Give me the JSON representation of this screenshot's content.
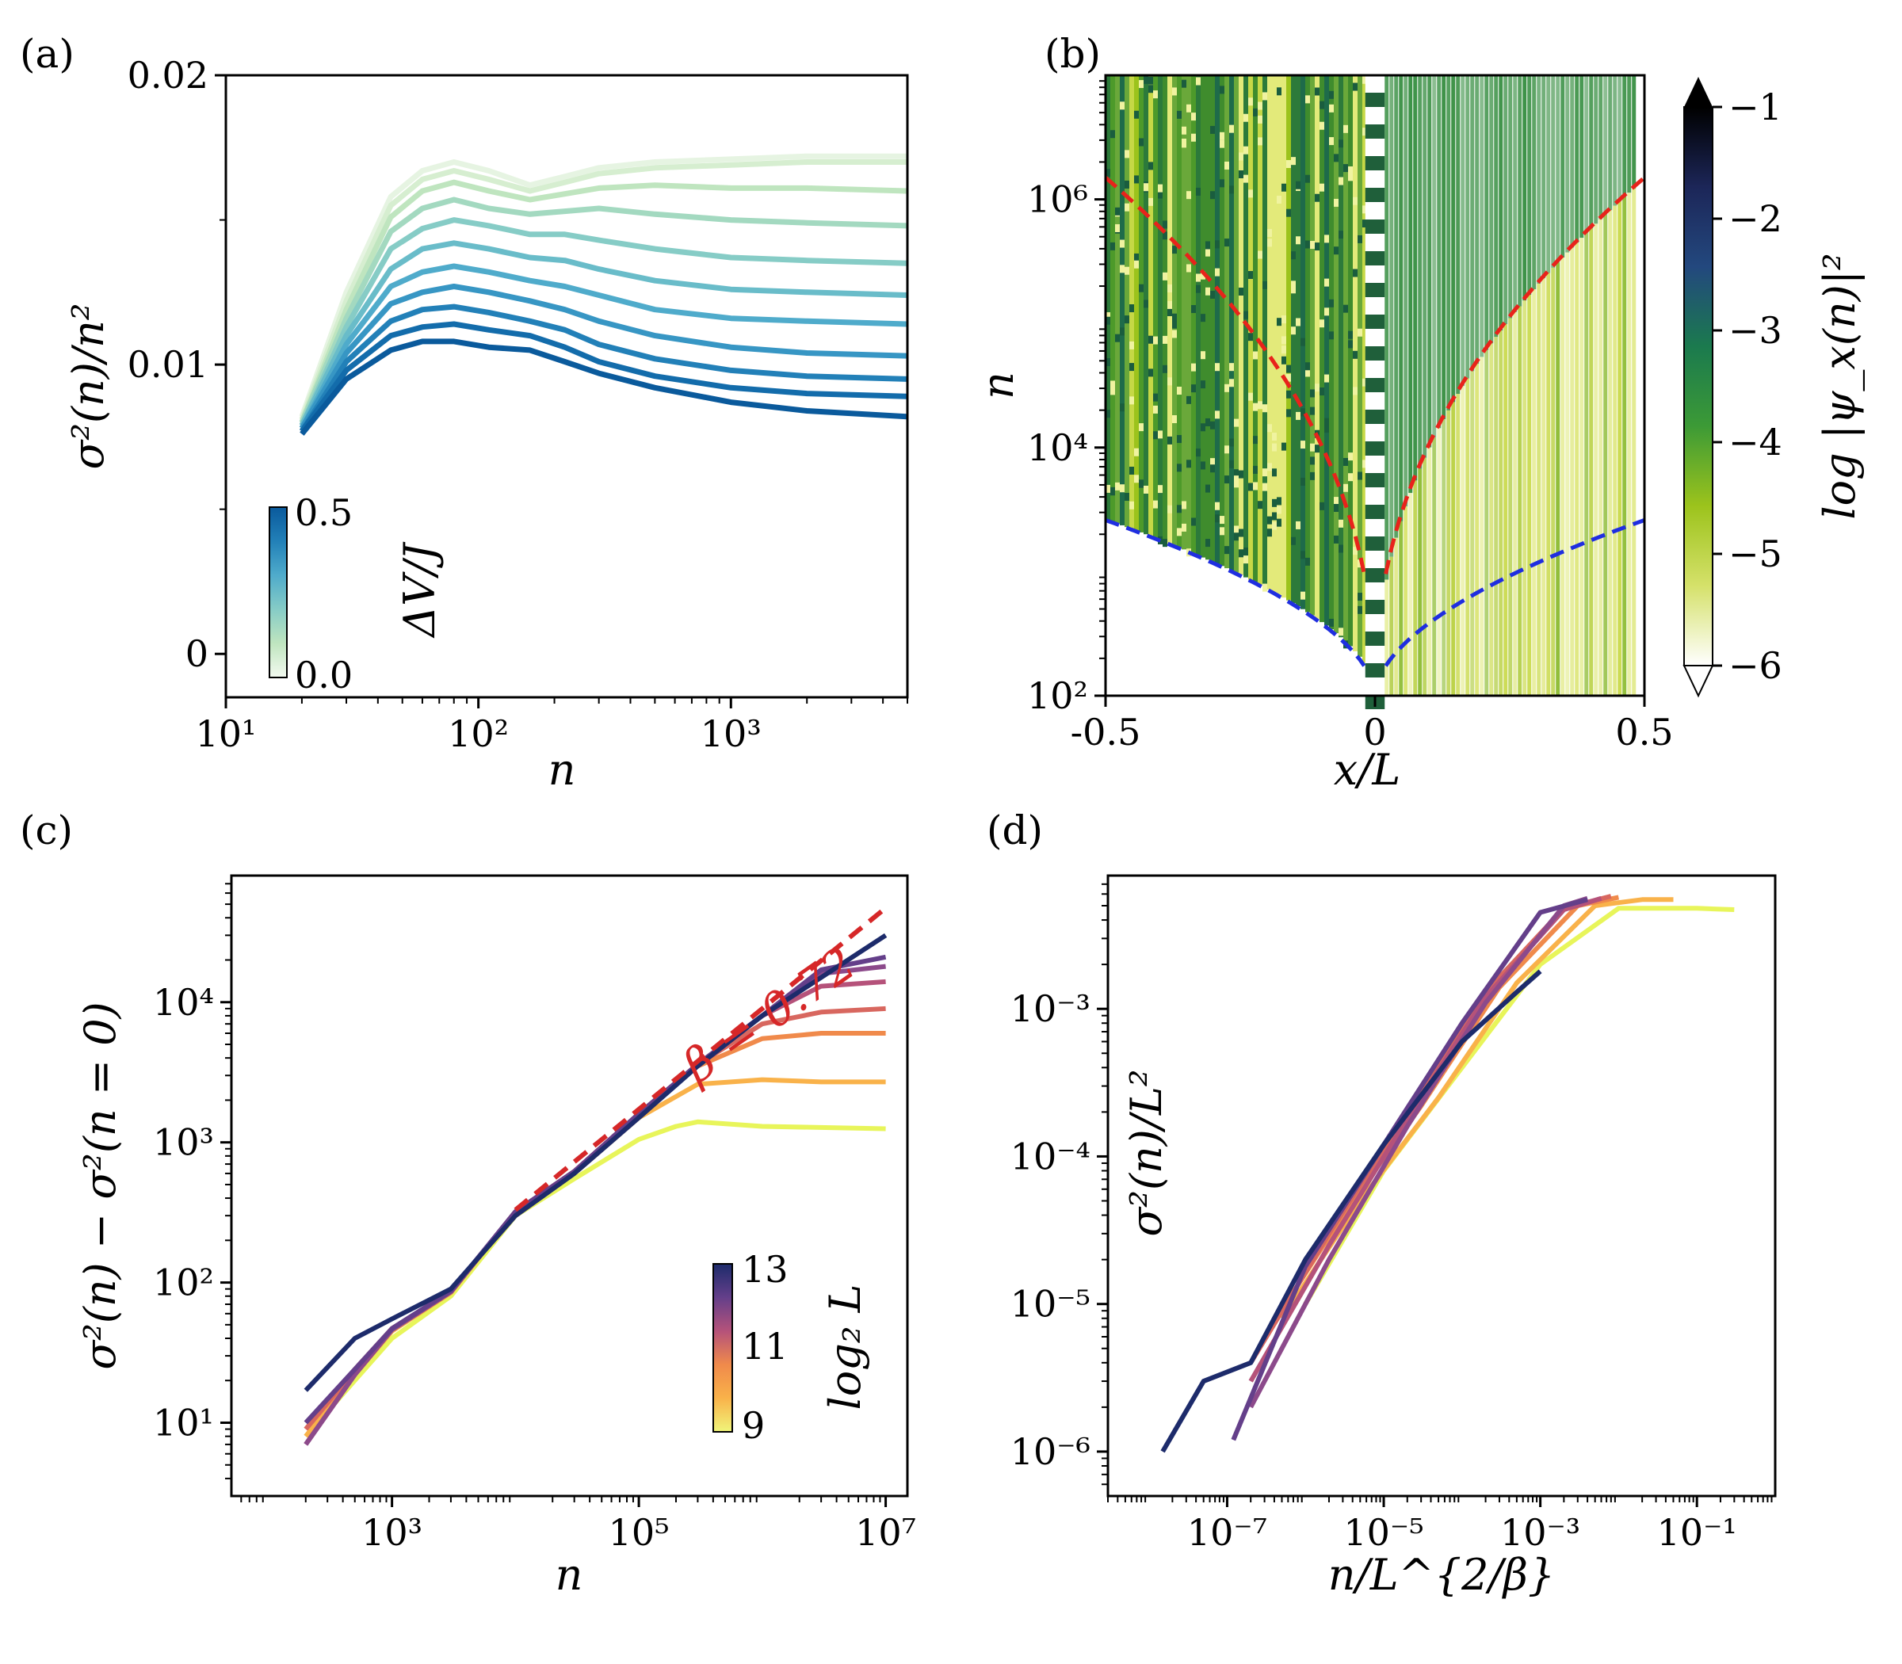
{
  "chart_data": [
    {
      "panel": "(a)",
      "type": "line",
      "xlabel": "n",
      "ylabel": "σ²(n)/n²",
      "xscale": "log",
      "xlim": [
        10,
        5000
      ],
      "ylim": [
        -0.0015,
        0.02
      ],
      "xticks": [
        "10¹",
        "10²",
        "10³"
      ],
      "yticks": [
        "0.02",
        "0.01",
        "0"
      ],
      "colorbar": {
        "label": "ΔV/J",
        "ticks": [
          "0.5",
          "0.0"
        ],
        "cmap": "GnBu",
        "placement": "lower-left inset"
      },
      "x": [
        20,
        30,
        45,
        60,
        80,
        110,
        160,
        220,
        300,
        500,
        1000,
        2000,
        5000
      ],
      "series": [
        {
          "param": 0.0,
          "color": "#e6f4e2",
          "values": [
            0.0082,
            0.0125,
            0.0158,
            0.0167,
            0.017,
            0.0167,
            0.0162,
            0.0165,
            0.0168,
            0.017,
            0.0171,
            0.0172,
            0.0172
          ]
        },
        {
          "param": 0.05,
          "color": "#d6eed0",
          "values": [
            0.0081,
            0.0122,
            0.0155,
            0.0164,
            0.0167,
            0.0164,
            0.016,
            0.0163,
            0.0166,
            0.0168,
            0.0169,
            0.017,
            0.017
          ]
        },
        {
          "param": 0.1,
          "color": "#bfe5bf",
          "values": [
            0.008,
            0.0119,
            0.0151,
            0.016,
            0.0163,
            0.016,
            0.0157,
            0.0159,
            0.0161,
            0.0162,
            0.0161,
            0.0161,
            0.016
          ]
        },
        {
          "param": 0.15,
          "color": "#a3d9c0",
          "values": [
            0.008,
            0.0116,
            0.0146,
            0.0154,
            0.0157,
            0.0154,
            0.0152,
            0.0153,
            0.0154,
            0.0152,
            0.015,
            0.0149,
            0.0148
          ]
        },
        {
          "param": 0.2,
          "color": "#86ccc6",
          "values": [
            0.0079,
            0.0113,
            0.014,
            0.0147,
            0.015,
            0.0148,
            0.0145,
            0.0145,
            0.0143,
            0.014,
            0.0137,
            0.0136,
            0.0135
          ]
        },
        {
          "param": 0.25,
          "color": "#69bcc9",
          "values": [
            0.0079,
            0.011,
            0.0133,
            0.014,
            0.0142,
            0.014,
            0.0137,
            0.0136,
            0.0133,
            0.0129,
            0.0126,
            0.0125,
            0.0124
          ]
        },
        {
          "param": 0.3,
          "color": "#4fabcb",
          "values": [
            0.0078,
            0.0107,
            0.0127,
            0.0132,
            0.0134,
            0.0132,
            0.0129,
            0.0127,
            0.0124,
            0.0119,
            0.0116,
            0.0115,
            0.0114
          ]
        },
        {
          "param": 0.35,
          "color": "#3796c4",
          "values": [
            0.0078,
            0.0104,
            0.0121,
            0.0125,
            0.0127,
            0.0125,
            0.0122,
            0.0119,
            0.0115,
            0.011,
            0.0106,
            0.0104,
            0.0103
          ]
        },
        {
          "param": 0.4,
          "color": "#2280b8",
          "values": [
            0.0077,
            0.0101,
            0.0115,
            0.0119,
            0.012,
            0.0118,
            0.0115,
            0.0112,
            0.0107,
            0.0102,
            0.0098,
            0.0096,
            0.0095
          ]
        },
        {
          "param": 0.45,
          "color": "#136cab",
          "values": [
            0.0077,
            0.0098,
            0.011,
            0.0113,
            0.0114,
            0.0112,
            0.011,
            0.0106,
            0.0101,
            0.0096,
            0.0092,
            0.009,
            0.0089
          ]
        },
        {
          "param": 0.5,
          "color": "#0a5a9c",
          "values": [
            0.0076,
            0.0095,
            0.0105,
            0.0108,
            0.0108,
            0.0106,
            0.0105,
            0.0101,
            0.0097,
            0.0092,
            0.0087,
            0.0084,
            0.0082
          ]
        }
      ]
    },
    {
      "panel": "(b)",
      "type": "heatmap",
      "xlabel": "x/L",
      "ylabel": "n",
      "yscale": "log",
      "xlim": [
        -0.5,
        0.5
      ],
      "ylim": [
        100,
        10000000
      ],
      "xticks": [
        "-0.5",
        "0",
        "0.5"
      ],
      "yticks": [
        "10²",
        "10⁴",
        "10⁶"
      ],
      "colorbar": {
        "label": "log |ψ_x(n)|²",
        "ticks": [
          "−1",
          "−2",
          "−3",
          "−4",
          "−5",
          "−6"
        ],
        "range": [
          -6,
          -1
        ],
        "cmap": "ocean_r-like (white-yellowgreen-green-navy-black)"
      },
      "overlays": [
        {
          "name": "red dashed",
          "color": "#e8231b",
          "note": "left: n ≈ 1.5e6 at x/L=−0.5 down to ~100 near x=0; right mirror"
        },
        {
          "name": "blue dashed",
          "color": "#1f2ee0",
          "note": "left: n ≈ 2.6e3 at x/L=−0.5 down to ~100 near x=0; right mirror"
        }
      ]
    },
    {
      "panel": "(c)",
      "type": "line",
      "xlabel": "n",
      "ylabel": "σ²(n) − σ²(n = 0)",
      "xscale": "log",
      "yscale": "log",
      "xlim": [
        50,
        15000000
      ],
      "ylim": [
        3,
        80000
      ],
      "xticks": [
        "10³",
        "10⁵",
        "10⁷"
      ],
      "yticks": [
        "10¹",
        "10²",
        "10³",
        "10⁴"
      ],
      "annotation": "β = 0.72",
      "fit_line": {
        "x": [
          10000,
          10000000
        ],
        "y": [
          330,
          47000
        ],
        "color": "#d62728",
        "style": "dashed"
      },
      "colorbar": {
        "label": "log₂ L",
        "ticks": [
          "13",
          "11",
          "9"
        ],
        "cmap": "plasma_r",
        "placement": "lower-right inset"
      },
      "series": [
        {
          "L_exp": 9,
          "color": "#e8f55a",
          "x": [
            200,
            500,
            1000,
            3000,
            10000,
            30000,
            100000,
            200000,
            300000,
            1000000,
            10000000
          ],
          "values": [
            8,
            20,
            40,
            80,
            300,
            550,
            1050,
            1300,
            1400,
            1300,
            1250
          ]
        },
        {
          "L_exp": 10,
          "color": "#f9b24a",
          "x": [
            200,
            500,
            1000,
            3000,
            10000,
            30000,
            100000,
            300000,
            1000000,
            3000000,
            10000000
          ],
          "values": [
            8,
            22,
            45,
            85,
            320,
            600,
            1500,
            2600,
            2800,
            2700,
            2700
          ]
        },
        {
          "L_exp": 10.5,
          "color": "#f08a4b",
          "x": [
            200,
            500,
            1000,
            3000,
            10000,
            30000,
            100000,
            300000,
            1000000,
            3000000,
            10000000
          ],
          "values": [
            9,
            23,
            46,
            85,
            320,
            620,
            1600,
            3500,
            5500,
            6000,
            6000
          ]
        },
        {
          "L_exp": 11,
          "color": "#d8675f",
          "x": [
            200,
            500,
            1000,
            3000,
            10000,
            30000,
            100000,
            300000,
            1000000,
            3000000,
            10000000
          ],
          "values": [
            9,
            24,
            47,
            86,
            320,
            620,
            1600,
            3600,
            7000,
            8500,
            9000
          ]
        },
        {
          "L_exp": 11.5,
          "color": "#b5527a",
          "x": [
            200,
            500,
            1000,
            3000,
            10000,
            30000,
            100000,
            300000,
            1000000,
            3000000,
            10000000
          ],
          "values": [
            7,
            22,
            46,
            86,
            320,
            620,
            1600,
            3600,
            8000,
            13000,
            14000
          ]
        },
        {
          "L_exp": 12,
          "color": "#8c4a8b",
          "x": [
            200,
            500,
            1000,
            3000,
            10000,
            30000,
            100000,
            300000,
            1000000,
            3000000,
            10000000
          ],
          "values": [
            7,
            22,
            46,
            86,
            320,
            620,
            1600,
            3600,
            8000,
            16000,
            18000
          ]
        },
        {
          "L_exp": 12.5,
          "color": "#643f8a",
          "x": [
            200,
            500,
            1000,
            3000,
            10000,
            30000,
            100000,
            300000,
            1000000,
            3000000,
            10000000
          ],
          "values": [
            10,
            24,
            47,
            87,
            320,
            620,
            1600,
            3600,
            8000,
            17000,
            21000
          ]
        },
        {
          "L_exp": 13,
          "color": "#1d2b6b",
          "x": [
            200,
            500,
            1000,
            3000,
            10000,
            30000,
            100000,
            300000,
            1000000,
            3000000,
            10000000
          ],
          "values": [
            17,
            40,
            55,
            90,
            300,
            600,
            1500,
            3500,
            8000,
            15000,
            30000
          ]
        }
      ]
    },
    {
      "panel": "(d)",
      "type": "line",
      "xlabel": "n/L^{2/β}",
      "ylabel": "σ²(n)/L²",
      "xscale": "log",
      "yscale": "log",
      "xlim": [
        3e-09,
        1
      ],
      "ylim": [
        5e-07,
        0.008
      ],
      "xticks": [
        "10⁻⁷",
        "10⁻⁵",
        "10⁻³",
        "10⁻¹"
      ],
      "yticks": [
        "10⁻⁶",
        "10⁻⁵",
        "10⁻⁴",
        "10⁻³"
      ],
      "series": [
        {
          "color": "#e8f55a",
          "x": [
            1e-06,
            1e-05,
            0.0001,
            0.001,
            0.01,
            0.1,
            0.3
          ],
          "values": [
            1e-05,
            8e-05,
            0.0004,
            0.002,
            0.0048,
            0.0048,
            0.0047
          ]
        },
        {
          "color": "#f9b24a",
          "x": [
            5e-07,
            5e-06,
            5e-05,
            0.0005,
            0.005,
            0.02,
            0.05
          ],
          "values": [
            8e-06,
            5e-05,
            0.00025,
            0.0015,
            0.005,
            0.0055,
            0.0055
          ]
        },
        {
          "color": "#f08a4b",
          "x": [
            3e-07,
            3e-06,
            3e-05,
            0.0003,
            0.003,
            0.01
          ],
          "values": [
            6e-06,
            4e-05,
            0.00022,
            0.0014,
            0.005,
            0.0057
          ]
        },
        {
          "color": "#d8675f",
          "x": [
            2e-07,
            2e-06,
            2e-05,
            0.0002,
            0.002,
            0.008
          ],
          "values": [
            4e-06,
            3e-05,
            0.0002,
            0.0013,
            0.0048,
            0.0058
          ]
        },
        {
          "color": "#b5527a",
          "x": [
            2e-07,
            2e-06,
            2e-05,
            0.0002,
            0.002,
            0.006
          ],
          "values": [
            3e-06,
            2.5e-05,
            0.00018,
            0.0012,
            0.0047,
            0.0056
          ]
        },
        {
          "color": "#8c4a8b",
          "x": [
            2e-07,
            2e-06,
            2e-05,
            0.0002,
            0.002,
            0.004
          ],
          "values": [
            2e-06,
            2e-05,
            0.00016,
            0.0011,
            0.005,
            0.0056
          ]
        },
        {
          "color": "#643f8a",
          "x": [
            1.2e-07,
            1e-06,
            1e-05,
            0.0001,
            0.001,
            0.004
          ],
          "values": [
            1.2e-06,
            1.8e-05,
            0.00012,
            0.0008,
            0.0045,
            0.0055
          ]
        },
        {
          "color": "#1d2b6b",
          "x": [
            1.5e-08,
            5e-08,
            2e-07,
            1e-06,
            1e-05,
            0.0001,
            0.0005,
            0.001
          ],
          "values": [
            1e-06,
            3e-06,
            4e-06,
            2e-05,
            0.00012,
            0.0006,
            0.0013,
            0.0018
          ]
        }
      ]
    }
  ],
  "panels": {
    "a": "(a)",
    "b": "(b)",
    "c": "(c)",
    "d": "(d)"
  }
}
